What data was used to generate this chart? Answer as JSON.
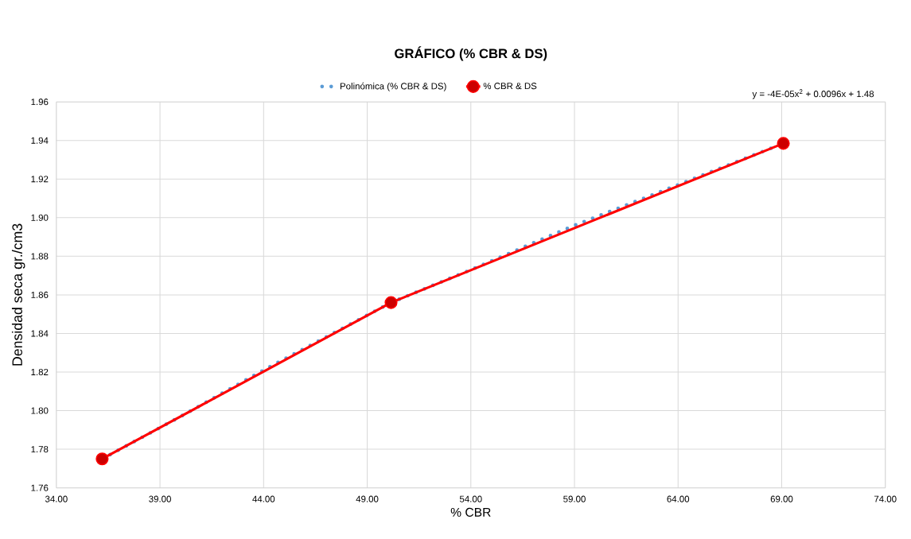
{
  "chart_data": {
    "type": "line",
    "title": "GRÁFICO (% CBR & DS)",
    "xlabel": "% CBR",
    "ylabel": "Densidad  seca    gr./cm3",
    "series": [
      {
        "name": "% CBR & DS",
        "color": "#ff0000",
        "x": [
          36.21,
          50.15,
          69.08
        ],
        "values": [
          1.775,
          1.856,
          1.9385
        ],
        "marker": "circle",
        "line_style": "solid"
      },
      {
        "name": "Polinómica (% CBR & DS)",
        "color": "#5b9bd5",
        "x": [
          36.21,
          40,
          44,
          50.15,
          54,
          59,
          64,
          69.08
        ],
        "values": [
          1.775,
          1.797,
          1.821,
          1.856,
          1.873,
          1.896,
          1.917,
          1.9385
        ],
        "marker": "none",
        "line_style": "dotted"
      }
    ],
    "annotations": [
      "y = -4E-05x$^{2}$ + 0.0096x + 1.48"
    ],
    "xlim": [
      34,
      74
    ],
    "ylim": [
      1.76,
      1.96
    ],
    "xticks": [
      {
        "value": 34,
        "label": "34.00"
      },
      {
        "value": 39,
        "label": "39.00"
      },
      {
        "value": 44,
        "label": "44.00"
      },
      {
        "value": 49,
        "label": "49.00"
      },
      {
        "value": 54,
        "label": "54.00"
      },
      {
        "value": 59,
        "label": "59.00"
      },
      {
        "value": 64,
        "label": "64.00"
      },
      {
        "value": 69,
        "label": "69.00"
      },
      {
        "value": 74,
        "label": "74.00"
      }
    ],
    "yticks": [
      1.76,
      1.78,
      {
        "value": 1.8,
        "label": "1.80"
      },
      1.82,
      1.84,
      1.86,
      1.88,
      {
        "value": 1.9,
        "label": "1.90"
      },
      1.92,
      1.94,
      1.96
    ],
    "grid": true,
    "legend": "top"
  }
}
